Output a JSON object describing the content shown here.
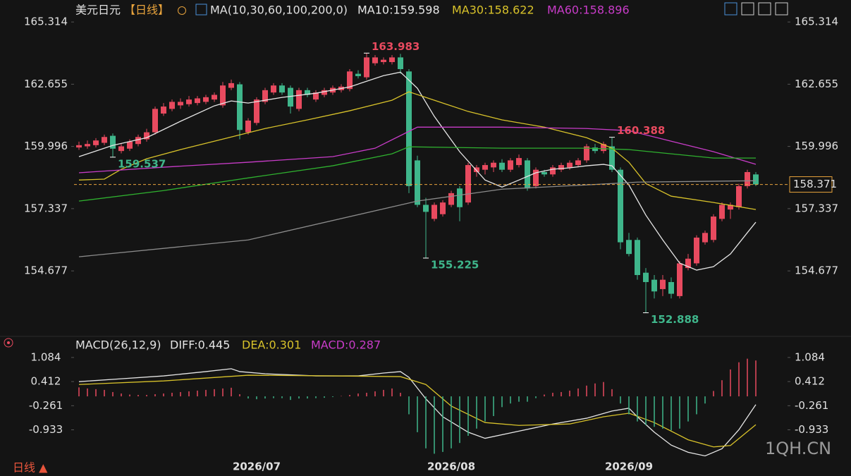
{
  "chart_data": [
    {
      "type": "candlestick",
      "title": "美元日元",
      "period": "【日线】",
      "indicator": "MA(10,30,60,100,200,0)",
      "categories": [
        null,
        null,
        null,
        null,
        null,
        null,
        null,
        null,
        null,
        null,
        null,
        null,
        null,
        null,
        null,
        null,
        null,
        null,
        null,
        null,
        null,
        "2026/07",
        null,
        null,
        null,
        null,
        null,
        null,
        null,
        null,
        null,
        null,
        null,
        null,
        null,
        null,
        null,
        null,
        null,
        null,
        null,
        null,
        null,
        null,
        "2026/08",
        null,
        null,
        null,
        null,
        null,
        null,
        null,
        null,
        null,
        null,
        null,
        null,
        null,
        null,
        null,
        null,
        null,
        null,
        null,
        null,
        "2026/09",
        null,
        null,
        null,
        null,
        null,
        null,
        null,
        null,
        null,
        null,
        null,
        null,
        null,
        null,
        null
      ],
      "opens": [
        159.95,
        160.0,
        160.05,
        160.15,
        160.45,
        159.8,
        159.9,
        160.1,
        160.3,
        160.6,
        161.4,
        161.6,
        161.75,
        161.8,
        161.85,
        161.9,
        162.0,
        161.75,
        162.5,
        162.65,
        160.6,
        161.0,
        161.9,
        162.3,
        162.6,
        162.5,
        161.6,
        162.4,
        162.0,
        162.2,
        162.3,
        162.4,
        162.45,
        163.1,
        162.95,
        163.55,
        163.6,
        163.6,
        163.8,
        163.2,
        159.4,
        157.5,
        156.9,
        157.1,
        157.5,
        158.2,
        157.6,
        158.9,
        159.0,
        159.1,
        159.3,
        159.0,
        159.2,
        159.4,
        158.3,
        158.9,
        158.8,
        159.0,
        159.1,
        159.2,
        159.4,
        159.95,
        159.8,
        160.0,
        159.0,
        156.0,
        156.0,
        154.6,
        154.3,
        153.9,
        154.2,
        153.6,
        154.8,
        155.0,
        155.9,
        156.0,
        156.9,
        157.3,
        157.4,
        158.3,
        158.8
      ],
      "highs": [
        160.2,
        160.25,
        160.35,
        160.5,
        160.55,
        160.1,
        160.3,
        160.5,
        160.75,
        161.7,
        161.85,
        162.0,
        162.05,
        162.15,
        162.15,
        162.2,
        162.3,
        162.75,
        162.85,
        162.75,
        161.2,
        162.1,
        162.5,
        162.7,
        162.7,
        162.6,
        162.5,
        162.5,
        162.4,
        162.5,
        162.6,
        162.65,
        163.3,
        163.25,
        163.983,
        163.9,
        163.8,
        163.9,
        163.95,
        163.3,
        159.6,
        157.8,
        157.6,
        157.7,
        158.1,
        158.3,
        159.3,
        159.2,
        159.3,
        159.4,
        159.45,
        159.5,
        159.65,
        159.5,
        159.1,
        159.0,
        159.2,
        159.3,
        159.4,
        159.5,
        160.1,
        160.1,
        160.2,
        160.388,
        159.1,
        156.3,
        156.1,
        154.8,
        154.5,
        154.5,
        154.4,
        155.1,
        155.4,
        156.2,
        156.4,
        157.1,
        157.6,
        157.6,
        158.4,
        159.0,
        158.9
      ],
      "lows": [
        159.85,
        159.9,
        159.95,
        160.05,
        159.537,
        159.7,
        159.8,
        160.0,
        160.2,
        160.5,
        161.3,
        161.5,
        161.6,
        161.7,
        161.75,
        161.8,
        161.9,
        161.65,
        162.4,
        160.3,
        160.5,
        160.9,
        161.8,
        162.2,
        162.2,
        161.4,
        161.5,
        162.1,
        161.9,
        162.1,
        162.2,
        162.3,
        162.35,
        162.9,
        162.85,
        163.45,
        163.5,
        163.5,
        163.1,
        158.0,
        157.4,
        155.225,
        156.8,
        157.0,
        157.4,
        156.8,
        157.5,
        158.7,
        158.8,
        158.9,
        158.9,
        158.9,
        159.1,
        158.1,
        158.2,
        158.7,
        158.7,
        158.9,
        159.0,
        159.1,
        159.3,
        159.7,
        159.7,
        158.9,
        155.6,
        155.3,
        154.3,
        152.888,
        153.5,
        153.6,
        153.5,
        153.5,
        154.7,
        154.9,
        155.8,
        155.9,
        156.8,
        156.9,
        157.3,
        158.2,
        158.3
      ],
      "closes": [
        160.05,
        160.1,
        160.25,
        160.4,
        159.9,
        160.0,
        160.2,
        160.4,
        160.6,
        161.6,
        161.7,
        161.9,
        161.9,
        162.0,
        162.05,
        162.1,
        162.2,
        162.6,
        162.7,
        160.7,
        161.1,
        162.0,
        162.4,
        162.6,
        162.3,
        161.7,
        162.4,
        162.2,
        162.3,
        162.4,
        162.5,
        162.55,
        163.2,
        163.0,
        163.8,
        163.8,
        163.7,
        163.8,
        163.3,
        158.3,
        157.5,
        157.2,
        157.5,
        157.6,
        158.0,
        157.4,
        159.2,
        159.1,
        159.2,
        159.3,
        159.0,
        159.4,
        159.5,
        158.2,
        159.0,
        158.8,
        159.1,
        159.2,
        159.3,
        159.4,
        160.0,
        159.8,
        160.1,
        159.0,
        155.9,
        155.4,
        154.5,
        154.2,
        153.8,
        154.3,
        153.7,
        155.0,
        155.2,
        156.1,
        156.3,
        157.0,
        157.5,
        157.5,
        158.3,
        158.9,
        158.371
      ],
      "up_color": "#e84a5f",
      "down_color": "#3fb68b",
      "last_price_color": "#e8a33c",
      "ylim": [
        152.0,
        165.65
      ],
      "yticks": [
        165.314,
        162.655,
        159.996,
        157.337,
        154.677
      ],
      "series": [
        {
          "name": "MA10:159.598",
          "color": "#e6e6e6",
          "x": [
            0,
            4,
            8,
            12,
            16,
            18,
            20,
            24,
            28,
            32,
            36,
            38,
            40,
            42,
            45,
            48,
            50,
            52,
            54,
            56,
            58,
            60,
            62,
            63,
            65,
            67,
            69,
            71,
            73,
            75,
            77,
            79,
            80
          ],
          "values": [
            159.56,
            160.04,
            160.37,
            161.07,
            161.73,
            161.94,
            161.85,
            162.09,
            162.27,
            162.54,
            163.02,
            163.17,
            162.48,
            161.28,
            159.77,
            158.56,
            158.26,
            158.56,
            158.87,
            159.02,
            159.08,
            159.17,
            159.23,
            159.17,
            158.35,
            157.06,
            156.0,
            155.01,
            154.71,
            154.86,
            155.4,
            156.31,
            156.76
          ]
        },
        {
          "name": "MA30:158.622",
          "color": "#d8c22a",
          "x": [
            0,
            3,
            5,
            8,
            12,
            17,
            22,
            27,
            32,
            37,
            39,
            42,
            46,
            50,
            55,
            60,
            63,
            65,
            67,
            70,
            75,
            80
          ],
          "values": [
            158.56,
            158.6,
            159.02,
            159.47,
            159.86,
            160.31,
            160.76,
            161.13,
            161.52,
            161.97,
            162.33,
            161.97,
            161.49,
            161.13,
            160.82,
            160.37,
            159.92,
            159.32,
            158.41,
            157.87,
            157.6,
            157.3
          ]
        },
        {
          "name": "MA60:158.896",
          "color": "#c83cc8",
          "x": [
            0,
            10,
            20,
            30,
            35,
            38,
            40,
            50,
            60,
            65,
            70,
            75,
            80
          ],
          "values": [
            158.87,
            159.11,
            159.32,
            159.56,
            159.92,
            160.46,
            160.82,
            160.82,
            160.76,
            160.67,
            160.22,
            159.77,
            159.23
          ]
        },
        {
          "color": "#2fb02f",
          "x": [
            0,
            10,
            20,
            30,
            37,
            39,
            50,
            60,
            65,
            70,
            75,
            80
          ],
          "values": [
            157.66,
            158.11,
            158.65,
            159.17,
            159.68,
            159.98,
            159.92,
            159.92,
            159.86,
            159.68,
            159.5,
            159.5
          ]
        },
        {
          "color": "#8c8c8c",
          "x": [
            0,
            20,
            40,
            50,
            60,
            66,
            80
          ],
          "values": [
            155.28,
            156.0,
            157.66,
            158.17,
            158.35,
            158.47,
            158.53
          ]
        }
      ]
    },
    {
      "type": "macd",
      "title": "MACD(26,12,9)",
      "up_color": "#e84a5f",
      "down_color": "#3fb68b",
      "ylim": [
        -1.69,
        1.22
      ],
      "yticks": [
        1.084,
        0.412,
        -0.261,
        -0.933
      ],
      "series": [
        {
          "name": "DIFF:0.445",
          "color": "#e6e6e6",
          "x": [
            0,
            5,
            10,
            15,
            18,
            19,
            22,
            28,
            33,
            36,
            38,
            39,
            41,
            43,
            46,
            48,
            52,
            56,
            60,
            63,
            65,
            66,
            68,
            70,
            72,
            74,
            76,
            78,
            80
          ],
          "values": [
            0.41,
            0.49,
            0.57,
            0.69,
            0.77,
            0.69,
            0.63,
            0.57,
            0.57,
            0.65,
            0.69,
            0.53,
            -0.07,
            -0.57,
            -1.0,
            -1.17,
            -0.97,
            -0.77,
            -0.61,
            -0.41,
            -0.33,
            -0.57,
            -1.0,
            -1.36,
            -1.56,
            -1.66,
            -1.46,
            -0.93,
            -0.23
          ]
        },
        {
          "name": "DEA:0.301",
          "color": "#d8c22a",
          "x": [
            0,
            10,
            20,
            30,
            38,
            41,
            44,
            48,
            52,
            58,
            62,
            65,
            68,
            72,
            75,
            77,
            80
          ],
          "values": [
            0.33,
            0.43,
            0.59,
            0.57,
            0.55,
            0.33,
            -0.27,
            -0.73,
            -0.81,
            -0.77,
            -0.57,
            -0.47,
            -0.73,
            -1.21,
            -1.41,
            -1.37,
            -0.79
          ]
        },
        {
          "name": "MACD:0.287",
          "color": "#c83cc8",
          "kind": "bar",
          "values": [
            0.25,
            0.22,
            0.2,
            0.18,
            0.12,
            0.08,
            0.05,
            0.04,
            0.04,
            0.06,
            0.08,
            0.1,
            0.12,
            0.14,
            0.16,
            0.18,
            0.2,
            0.22,
            0.24,
            0.06,
            -0.06,
            -0.08,
            -0.06,
            -0.05,
            -0.05,
            -0.1,
            -0.06,
            -0.06,
            -0.05,
            -0.04,
            -0.02,
            0.01,
            0.04,
            0.08,
            0.1,
            0.14,
            0.18,
            0.22,
            0.1,
            -0.5,
            -1.0,
            -1.45,
            -1.6,
            -1.55,
            -1.45,
            -1.3,
            -1.1,
            -0.9,
            -0.7,
            -0.55,
            -0.3,
            -0.2,
            -0.15,
            -0.15,
            -0.05,
            0.05,
            0.1,
            0.12,
            0.16,
            0.22,
            0.3,
            0.36,
            0.4,
            0.2,
            -0.2,
            -0.5,
            -0.7,
            -0.8,
            -0.85,
            -0.9,
            -0.95,
            -0.9,
            -0.7,
            -0.5,
            -0.2,
            0.15,
            0.45,
            0.75,
            0.95,
            1.05,
            1.0
          ]
        }
      ]
    }
  ],
  "period_switch": "日线 ▲",
  "watermark": "1QH.CN"
}
